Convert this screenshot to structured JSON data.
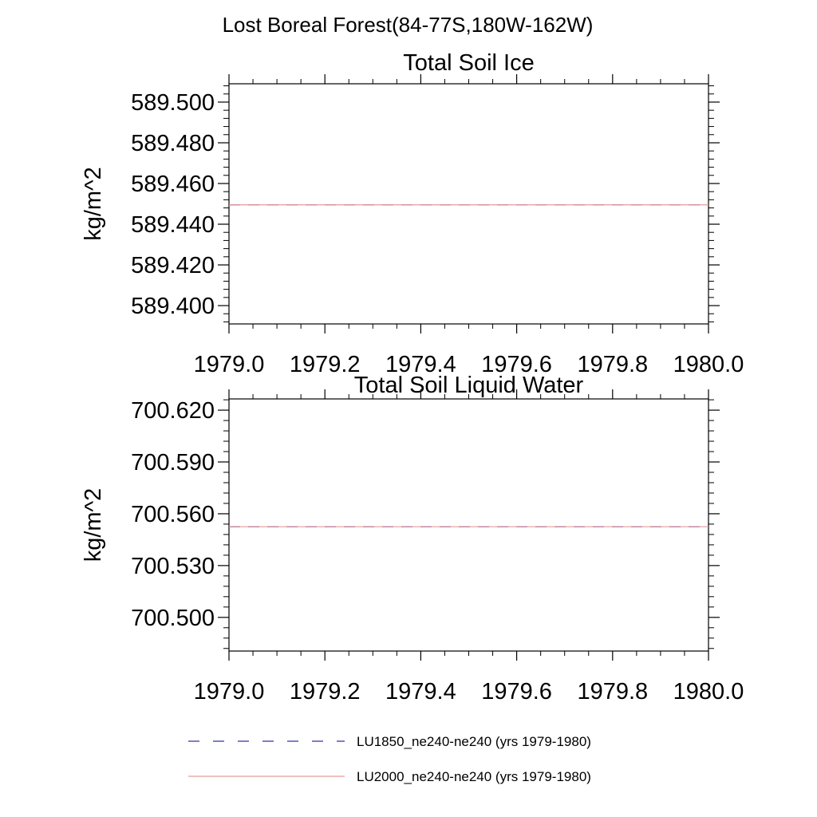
{
  "figure_title": "Lost Boreal Forest(84-77S,180W-162W)",
  "colors": {
    "series_1": "#3333aa",
    "series_2": "#e89a9a",
    "axis": "#000000"
  },
  "chart_data": [
    {
      "type": "line",
      "title": "Total Soil Ice",
      "xlabel": "",
      "ylabel": "kg/m^2",
      "xlim": [
        1979.0,
        1980.0
      ],
      "ylim": [
        589.391,
        589.509
      ],
      "x_ticks": [
        1979.0,
        1979.2,
        1979.4,
        1979.6,
        1979.8,
        1980.0
      ],
      "x_tick_labels": [
        "1979.0",
        "1979.2",
        "1979.4",
        "1979.6",
        "1979.8",
        "1980.0"
      ],
      "y_ticks": [
        589.4,
        589.42,
        589.44,
        589.46,
        589.48,
        589.5
      ],
      "y_tick_labels": [
        "589.400",
        "589.420",
        "589.440",
        "589.460",
        "589.480",
        "589.500"
      ],
      "grid": false,
      "series": [
        {
          "name": "LU1850_ne240-ne240 (yrs 1979-1980)",
          "style": "dashed",
          "x": [
            1979.0,
            1980.0
          ],
          "values": [
            589.4495,
            589.4495
          ]
        },
        {
          "name": "LU2000_ne240-ne240 (yrs 1979-1980)",
          "style": "solid",
          "x": [
            1979.0,
            1980.0
          ],
          "values": [
            589.4495,
            589.4495
          ]
        }
      ]
    },
    {
      "type": "line",
      "title": "Total Soil Liquid Water",
      "xlabel": "",
      "ylabel": "kg/m^2",
      "xlim": [
        1979.0,
        1980.0
      ],
      "ylim": [
        700.4805,
        700.6265
      ],
      "x_ticks": [
        1979.0,
        1979.2,
        1979.4,
        1979.6,
        1979.8,
        1980.0
      ],
      "x_tick_labels": [
        "1979.0",
        "1979.2",
        "1979.4",
        "1979.6",
        "1979.8",
        "1980.0"
      ],
      "y_ticks": [
        700.5,
        700.53,
        700.56,
        700.59,
        700.62
      ],
      "y_tick_labels": [
        "700.500",
        "700.530",
        "700.560",
        "700.590",
        "700.620"
      ],
      "grid": false,
      "series": [
        {
          "name": "LU1850_ne240-ne240 (yrs 1979-1980)",
          "style": "dashed",
          "x": [
            1979.0,
            1980.0
          ],
          "values": [
            700.5525,
            700.5525
          ]
        },
        {
          "name": "LU2000_ne240-ne240 (yrs 1979-1980)",
          "style": "solid",
          "x": [
            1979.0,
            1980.0
          ],
          "values": [
            700.5525,
            700.5525
          ]
        }
      ]
    }
  ],
  "legend": {
    "placement": "bottom-left",
    "entries": [
      {
        "label": "LU1850_ne240-ne240 (yrs 1979-1980)",
        "style": "dashed",
        "color": "#3333aa"
      },
      {
        "label": "LU2000_ne240-ne240 (yrs 1979-1980)",
        "style": "solid",
        "color": "#e89a9a"
      }
    ]
  }
}
